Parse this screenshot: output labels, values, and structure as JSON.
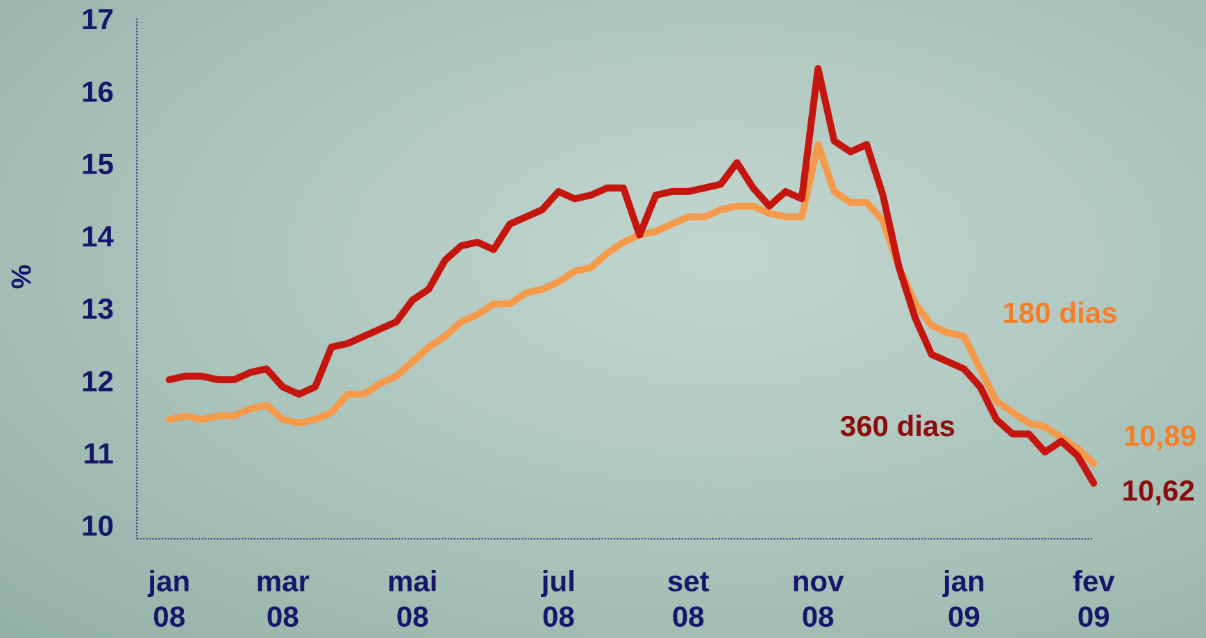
{
  "chart_data": {
    "type": "line",
    "y_label": "%",
    "categories": [
      "jan\n08",
      null,
      null,
      null,
      null,
      null,
      null,
      "mar\n08",
      null,
      null,
      null,
      null,
      null,
      null,
      null,
      "mai\n08",
      null,
      null,
      null,
      null,
      null,
      null,
      null,
      null,
      "jul\n08",
      null,
      null,
      null,
      null,
      null,
      null,
      null,
      "set\n08",
      null,
      null,
      null,
      null,
      null,
      null,
      null,
      "nov\n08",
      null,
      null,
      null,
      null,
      null,
      null,
      null,
      null,
      "jan\n09",
      null,
      null,
      null,
      null,
      null,
      null,
      null,
      "fev\n09"
    ],
    "ylim": [
      10,
      17
    ],
    "yticks": [
      10,
      11,
      12,
      13,
      14,
      15,
      16,
      17
    ],
    "series": [
      {
        "name": "180 dias",
        "color": "#f59a4a",
        "label_color": "#f57f28",
        "values": [
          11.5,
          11.55,
          11.5,
          11.55,
          11.55,
          11.65,
          11.7,
          11.5,
          11.45,
          11.5,
          11.6,
          11.85,
          11.85,
          12.0,
          12.1,
          12.3,
          12.5,
          12.65,
          12.85,
          12.95,
          13.1,
          13.1,
          13.25,
          13.3,
          13.4,
          13.55,
          13.6,
          13.8,
          13.95,
          14.05,
          14.1,
          14.2,
          14.3,
          14.3,
          14.4,
          14.45,
          14.45,
          14.35,
          14.3,
          14.3,
          15.3,
          14.65,
          14.5,
          14.5,
          14.25,
          13.6,
          13.1,
          12.8,
          12.7,
          12.65,
          12.2,
          11.75,
          11.6,
          11.45,
          11.4,
          11.25,
          11.1,
          10.89
        ],
        "value_labels": [
          null,
          null,
          null,
          null,
          null,
          null,
          null,
          null,
          null,
          null,
          null,
          null,
          null,
          null,
          null,
          null,
          null,
          null,
          null,
          null,
          null,
          null,
          null,
          null,
          null,
          null,
          null,
          null,
          null,
          null,
          null,
          null,
          null,
          null,
          null,
          null,
          null,
          null,
          null,
          null,
          null,
          null,
          null,
          null,
          null,
          null,
          null,
          null,
          null,
          null,
          null,
          null,
          null,
          null,
          null,
          null,
          null,
          "10,89"
        ]
      },
      {
        "name": "360 dias",
        "color": "#c4150f",
        "label_color": "#8b0c0c",
        "values": [
          12.05,
          12.1,
          12.1,
          12.05,
          12.05,
          12.15,
          12.2,
          11.95,
          11.85,
          11.95,
          12.5,
          12.55,
          12.65,
          12.75,
          12.85,
          13.15,
          13.3,
          13.7,
          13.9,
          13.95,
          13.85,
          14.2,
          14.3,
          14.4,
          14.65,
          14.55,
          14.6,
          14.7,
          14.7,
          14.05,
          14.6,
          14.65,
          14.65,
          14.7,
          14.75,
          15.05,
          14.7,
          14.45,
          14.65,
          14.55,
          16.35,
          15.35,
          15.2,
          15.3,
          14.6,
          13.6,
          12.9,
          12.4,
          12.3,
          12.2,
          11.95,
          11.5,
          11.3,
          11.3,
          11.05,
          11.2,
          11.0,
          10.62
        ],
        "value_labels": [
          null,
          null,
          null,
          null,
          null,
          null,
          null,
          null,
          null,
          null,
          null,
          null,
          null,
          null,
          null,
          null,
          null,
          null,
          null,
          null,
          null,
          null,
          null,
          null,
          null,
          null,
          null,
          null,
          null,
          null,
          null,
          null,
          null,
          null,
          null,
          null,
          null,
          null,
          null,
          null,
          null,
          null,
          null,
          null,
          null,
          null,
          null,
          null,
          null,
          null,
          null,
          null,
          null,
          null,
          null,
          null,
          null,
          "10,62"
        ]
      }
    ]
  }
}
